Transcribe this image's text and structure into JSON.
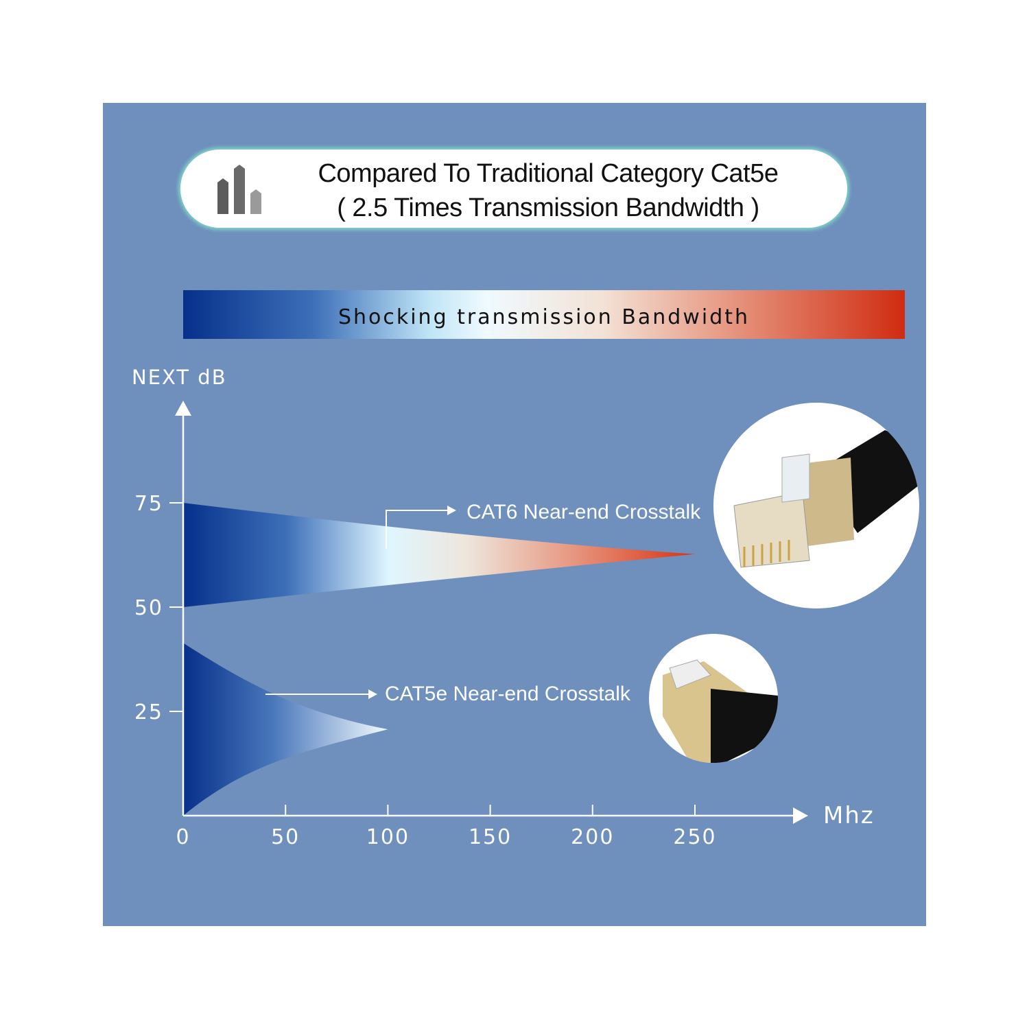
{
  "header": {
    "icon": "bar-chart-icon",
    "line1": "Compared To Traditional Category Cat5e",
    "line2": "( 2.5 Times Transmission Bandwidth )"
  },
  "banner": {
    "text": "Shocking transmission Bandwidth"
  },
  "colors": {
    "panel": "#6f8fbc",
    "deep_blue": "#06308a",
    "red": "#d02c10",
    "light": "#effaff"
  },
  "images": {
    "cat6": "cat6-connector-photo",
    "cat5e": "cat5e-connector-photo"
  },
  "chart_data": {
    "type": "area",
    "ylabel": "NEXT dB",
    "xlabel": "Mhz",
    "xlim": [
      0,
      300
    ],
    "ylim": [
      0,
      90
    ],
    "x_ticks": [
      0,
      50,
      100,
      150,
      200,
      250
    ],
    "x_tick_labels": [
      "0",
      "50",
      "100",
      "150",
      "200",
      "250"
    ],
    "y_ticks": [
      25,
      50,
      75
    ],
    "y_tick_labels": [
      "25",
      "50",
      "75"
    ],
    "grid": false,
    "series": [
      {
        "name": "CAT6 Near-end Crosstalk",
        "upper": [
          [
            0,
            75
          ],
          [
            250,
            62.7
          ]
        ],
        "lower": [
          [
            0,
            50
          ],
          [
            250,
            62.7
          ]
        ]
      },
      {
        "name": "CAT5e Near-end Crosstalk",
        "upper": [
          [
            0,
            41.4
          ],
          [
            100,
            20.7
          ]
        ],
        "lower": [
          [
            0,
            0
          ],
          [
            100,
            20.7
          ]
        ]
      }
    ]
  }
}
